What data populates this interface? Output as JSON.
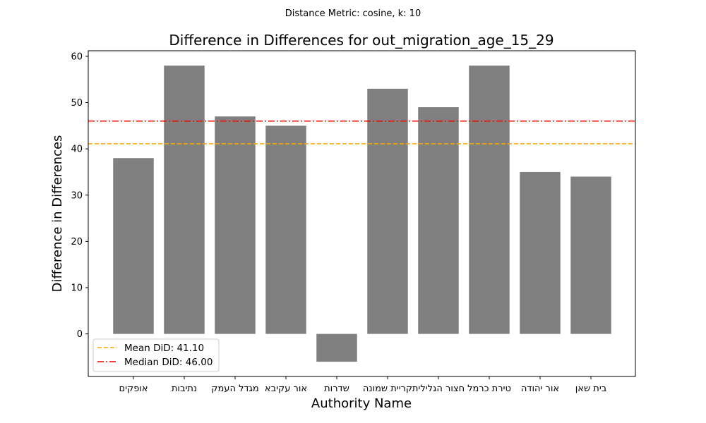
{
  "suptitle": "Distance Metric: cosine, k: 10",
  "chart_data": {
    "type": "bar",
    "title": "Difference in Differences for out_migration_age_15_29",
    "xlabel": "Authority Name",
    "ylabel": "Difference in Differences",
    "categories": [
      "אופקים",
      "נתיבות",
      "מגדל העמק",
      "אור עקיבא",
      "שדרות",
      "קריית שמונה",
      "חצור הגלילית",
      "טירת כרמל",
      "אור יהודה",
      "בית שאן"
    ],
    "values": [
      38,
      58,
      47,
      45,
      -6,
      53,
      49,
      58,
      35,
      34
    ],
    "ylim": [
      -9.2,
      61.2
    ],
    "yticks": [
      0,
      10,
      20,
      30,
      40,
      50,
      60
    ],
    "bar_color": "#808080",
    "grid": false,
    "reference_lines": [
      {
        "label": "Mean DiD: 41.10",
        "value": 41.1,
        "color": "#ffa500",
        "style": "dashed"
      },
      {
        "label": "Median DiD: 46.00",
        "value": 46.0,
        "color": "#ff0000",
        "style": "dashdot"
      }
    ],
    "legend_position": "lower-left"
  }
}
